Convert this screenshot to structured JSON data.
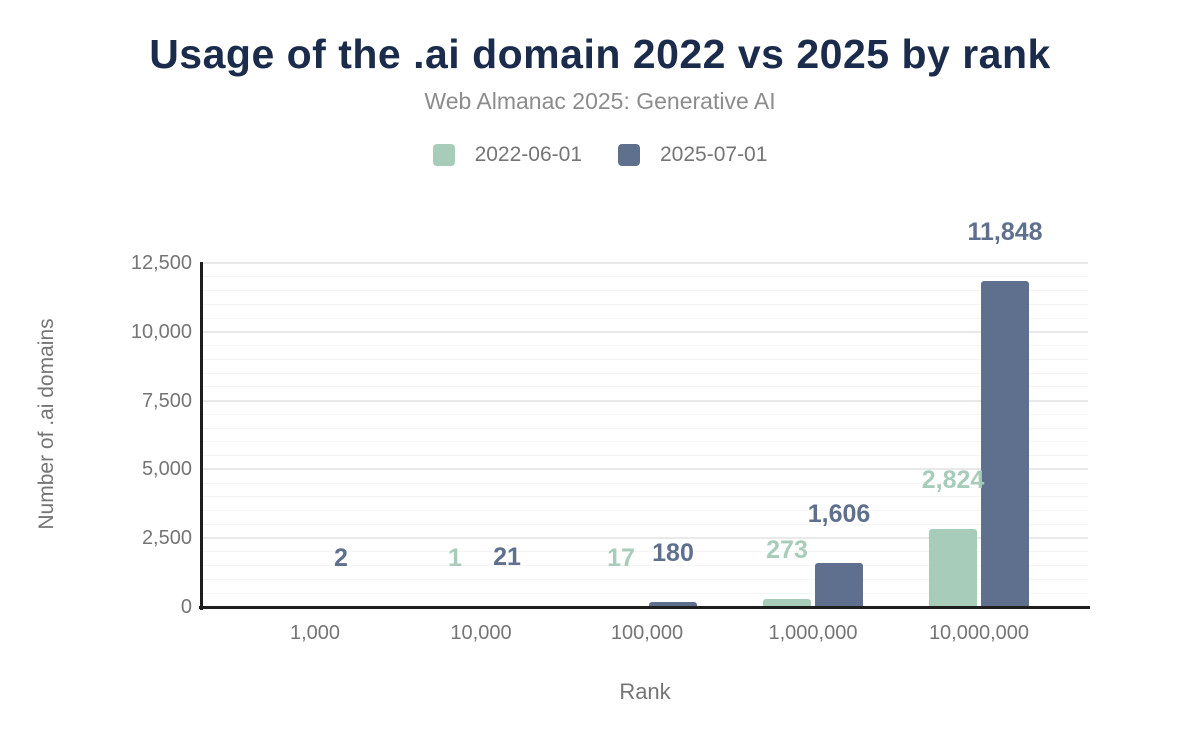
{
  "header": {
    "title": "Usage of the .ai domain 2022 vs 2025 by rank",
    "subtitle": "Web Almanac 2025: Generative AI"
  },
  "chart_data": {
    "type": "bar",
    "title": "Usage of the .ai domain 2022 vs 2025 by rank",
    "subtitle": "Web Almanac 2025: Generative AI",
    "xlabel": "Rank",
    "ylabel": "Number of .ai domains",
    "categories": [
      "1,000",
      "10,000",
      "100,000",
      "1,000,000",
      "10,000,000"
    ],
    "series": [
      {
        "name": "2022-06-01",
        "color": "#a8ccba",
        "values": [
          0,
          1,
          17,
          273,
          2824
        ],
        "value_labels": [
          "",
          "1",
          "17",
          "273",
          "2,824"
        ]
      },
      {
        "name": "2025-07-01",
        "color": "#5f708f",
        "values": [
          2,
          21,
          180,
          1606,
          11848
        ],
        "value_labels": [
          "2",
          "21",
          "180",
          "1,606",
          "11,848"
        ]
      }
    ],
    "ylim": [
      0,
      12500
    ],
    "yticks": {
      "values": [
        0,
        2500,
        5000,
        7500,
        10000,
        12500
      ],
      "labels": [
        "0",
        "2,500",
        "5,000",
        "7,500",
        "10,000",
        "12,500"
      ]
    },
    "grid": "horizontal, major every 2500, minor every 500",
    "legend_position": "top"
  },
  "colors": {
    "background": "#ffffff",
    "title_text": "#1a2b4b",
    "subtitle_text": "#8c8c8c",
    "tick_text": "#757575",
    "axis_line": "#1f1f1f",
    "major_grid": "#e9e9e9",
    "minor_grid": "#f5f5f5",
    "series_2022": "#a8ccba",
    "series_2025": "#5f708f"
  }
}
